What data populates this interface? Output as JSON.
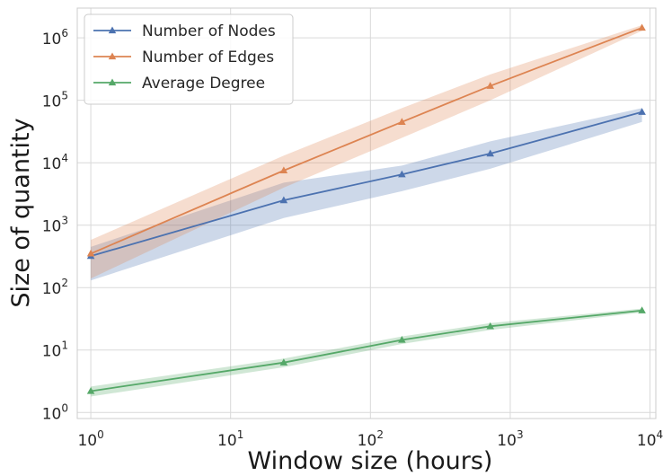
{
  "chart_data": {
    "type": "line",
    "title": "",
    "xlabel": "Window size (hours)",
    "ylabel": "Size of quantity",
    "x_scale": "log",
    "y_scale": "log",
    "xlim": [
      0.8,
      11000
    ],
    "ylim": [
      0.8,
      3000000
    ],
    "grid": true,
    "legend_position": "top-left",
    "x": [
      1,
      24,
      168,
      720,
      8760
    ],
    "x_ticks": [
      {
        "value": 1,
        "base": "10",
        "exp": "0"
      },
      {
        "value": 10,
        "base": "10",
        "exp": "1"
      },
      {
        "value": 100,
        "base": "10",
        "exp": "2"
      },
      {
        "value": 1000,
        "base": "10",
        "exp": "3"
      },
      {
        "value": 10000,
        "base": "10",
        "exp": "4"
      }
    ],
    "y_ticks": [
      {
        "value": 1,
        "base": "10",
        "exp": "0"
      },
      {
        "value": 10,
        "base": "10",
        "exp": "1"
      },
      {
        "value": 100,
        "base": "10",
        "exp": "2"
      },
      {
        "value": 1000,
        "base": "10",
        "exp": "3"
      },
      {
        "value": 10000,
        "base": "10",
        "exp": "4"
      },
      {
        "value": 100000,
        "base": "10",
        "exp": "5"
      },
      {
        "value": 1000000,
        "base": "10",
        "exp": "6"
      }
    ],
    "series": [
      {
        "name": "Number of Nodes",
        "color": "#4c72b0",
        "values": [
          320,
          2500,
          6500,
          14000,
          65000
        ],
        "band_low": [
          130,
          1300,
          3500,
          8000,
          45000
        ],
        "band_high": [
          450,
          4800,
          9000,
          22000,
          75000
        ]
      },
      {
        "name": "Number of Edges",
        "color": "#dd8452",
        "values": [
          350,
          7500,
          45000,
          170000,
          1450000
        ],
        "band_low": [
          140,
          4000,
          25000,
          100000,
          1300000
        ],
        "band_high": [
          580,
          13000,
          75000,
          260000,
          1600000
        ]
      },
      {
        "name": "Average Degree",
        "color": "#55a868",
        "values": [
          2.2,
          6.3,
          14.5,
          24,
          43
        ],
        "band_low": [
          1.8,
          5.3,
          12.5,
          21,
          40
        ],
        "band_high": [
          2.6,
          7.3,
          16.5,
          27,
          46
        ]
      }
    ]
  }
}
